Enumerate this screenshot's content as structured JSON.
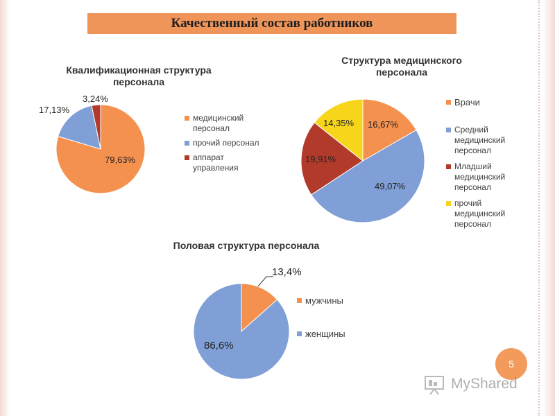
{
  "slide": {
    "title": "Качественный состав работников",
    "page_number": "5",
    "watermark": "MyShared"
  },
  "chart_data": [
    {
      "type": "pie",
      "title": "Квалификационная структура персонала",
      "legend_position": "right",
      "slices": [
        {
          "name": "медицинский персонал",
          "value": 79.63,
          "label": "79,63%",
          "color": "#f5914f"
        },
        {
          "name": "прочий персонал",
          "value": 17.13,
          "label": "17,13%",
          "color": "#7f9fd6"
        },
        {
          "name": "аппарат управления",
          "value": 3.24,
          "label": "3,24%",
          "color": "#b23a2a"
        }
      ]
    },
    {
      "type": "pie",
      "title": "Структура медицинского персонала",
      "legend_position": "right",
      "slices": [
        {
          "name": "Врачи",
          "value": 16.67,
          "label": "16,67%",
          "color": "#f5914f"
        },
        {
          "name": "Средний медицинский персонал",
          "value": 49.07,
          "label": "49,07%",
          "color": "#7f9fd6"
        },
        {
          "name": "Младший медицинский персонал",
          "value": 19.91,
          "label": "19,91%",
          "color": "#b23a2a"
        },
        {
          "name": "прочий медицинский персонал",
          "value": 14.35,
          "label": "14,35%",
          "color": "#f7d51a"
        }
      ]
    },
    {
      "type": "pie",
      "title": "Половая структура персонала",
      "legend_position": "right",
      "slices": [
        {
          "name": "мужчины",
          "value": 13.4,
          "label": "13,4%",
          "color": "#f5914f"
        },
        {
          "name": "женщины",
          "value": 86.6,
          "label": "86,6%",
          "color": "#7f9fd6"
        }
      ]
    }
  ]
}
